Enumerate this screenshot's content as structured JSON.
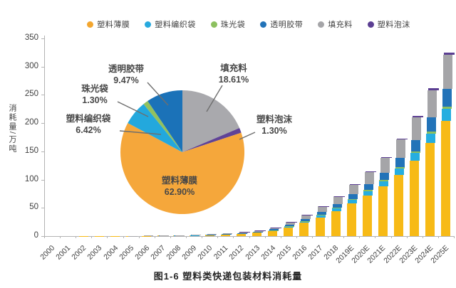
{
  "figure": {
    "caption": "图1-6 塑料类快递包装材料消耗量"
  },
  "legend": {
    "items": [
      {
        "key": "film",
        "label": "塑料薄膜",
        "color": "#F3A62F"
      },
      {
        "key": "woven-bag",
        "label": "塑料编织袋",
        "color": "#27A9DE"
      },
      {
        "key": "pearl-bag",
        "label": "珠光袋",
        "color": "#8CC05F"
      },
      {
        "key": "tape",
        "label": "透明胶带",
        "color": "#2273B8"
      },
      {
        "key": "filler",
        "label": "填充料",
        "color": "#A5A5A8"
      },
      {
        "key": "foam",
        "label": "塑料泡沫",
        "color": "#5B3E92"
      }
    ]
  },
  "chart_data": [
    {
      "type": "bar",
      "stacked": true,
      "ylabel": "消耗量/万吨",
      "ylim": [
        0,
        350
      ],
      "yticks": [
        0,
        50,
        100,
        150,
        200,
        250,
        300,
        350
      ],
      "grid": false,
      "categories": [
        "2000",
        "2001",
        "2002",
        "2003",
        "2004",
        "2005",
        "2006",
        "2007",
        "2008",
        "2009",
        "2010",
        "2011",
        "2012",
        "2013",
        "2014",
        "2015",
        "2016",
        "2017",
        "2018",
        "2019E",
        "2020E",
        "2021E",
        "2022E",
        "2023E",
        "2024E",
        "2025E"
      ],
      "totals": [
        0.1,
        0.15,
        0.2,
        0.3,
        0.45,
        0.6,
        0.9,
        1.3,
        1.8,
        2.5,
        3.5,
        5,
        7,
        10,
        15,
        25,
        38,
        53,
        71,
        92,
        115,
        140,
        173,
        213,
        262,
        325
      ],
      "series": [
        {
          "key": "film",
          "name": "塑料薄膜",
          "share": 0.629,
          "color": "#F7BA16"
        },
        {
          "key": "woven-bag",
          "name": "塑料编织袋",
          "share": 0.0642,
          "color": "#26AEE0"
        },
        {
          "key": "pearl-bag",
          "name": "珠光袋",
          "share": 0.013,
          "color": "#8CC05F"
        },
        {
          "key": "tape",
          "name": "透明胶带",
          "share": 0.0947,
          "color": "#2273B8"
        },
        {
          "key": "filler",
          "name": "填充料",
          "share": 0.1861,
          "color": "#A5A5A8"
        },
        {
          "key": "foam",
          "name": "塑料泡沫",
          "share": 0.013,
          "color": "#5B3E92"
        }
      ],
      "note": "segment value = total × share; shares taken from pie percentages"
    },
    {
      "type": "pie",
      "start_angle_deg": 0,
      "direction": "clockwise",
      "slices": [
        {
          "key": "filler",
          "label": "填充料",
          "pct": 18.61,
          "color": "#A9A9AD"
        },
        {
          "key": "foam",
          "label": "塑料泡沫",
          "pct": 1.3,
          "color": "#5F4397"
        },
        {
          "key": "film",
          "label": "塑料薄膜",
          "pct": 62.9,
          "color": "#F5A73B"
        },
        {
          "key": "woven-bag",
          "label": "塑料编织袋",
          "pct": 6.42,
          "color": "#23A8DD"
        },
        {
          "key": "pearl-bag",
          "label": "珠光袋",
          "pct": 1.3,
          "color": "#92C15E"
        },
        {
          "key": "tape",
          "label": "透明胶带",
          "pct": 9.47,
          "color": "#1B72B8"
        }
      ]
    }
  ]
}
